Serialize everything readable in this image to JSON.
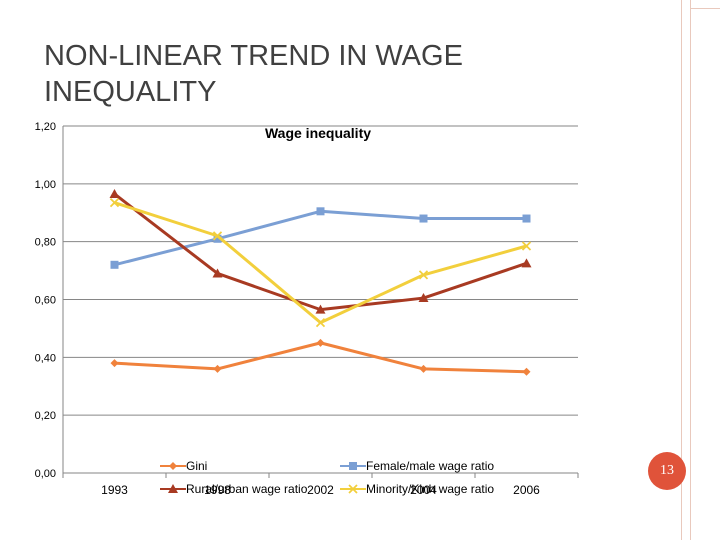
{
  "slide": {
    "title": "NON-LINEAR TREND IN WAGE INEQUALITY",
    "page_number": "13"
  },
  "colors": {
    "frame": "#e9c9bd",
    "badge": "#e0533a"
  },
  "chart_data": {
    "type": "line",
    "title": "Wage inequality",
    "categories": [
      "1993",
      "1998",
      "2002",
      "2004",
      "2006"
    ],
    "ylim": [
      0,
      1.2
    ],
    "yticks": [
      "0,00",
      "0,20",
      "0,40",
      "0,60",
      "0,80",
      "1,00",
      "1,20"
    ],
    "grid": true,
    "legend_position": "bottom",
    "series": [
      {
        "name": "Gini",
        "values": [
          0.38,
          0.36,
          0.45,
          0.36,
          0.35
        ],
        "color": "#f0823c",
        "marker": "diamond"
      },
      {
        "name": "Female/male wage ratio",
        "values": [
          0.72,
          0.81,
          0.905,
          0.88,
          0.88
        ],
        "color": "#7b9fd4",
        "marker": "square"
      },
      {
        "name": "Rural/urban wage ratio",
        "values": [
          0.965,
          0.69,
          0.565,
          0.605,
          0.725
        ],
        "color": "#a83a22",
        "marker": "triangle"
      },
      {
        "name": "Minority/Kinh wage ratio",
        "values": [
          0.935,
          0.82,
          0.52,
          0.685,
          0.785
        ],
        "color": "#f2cf3c",
        "marker": "x"
      }
    ]
  }
}
